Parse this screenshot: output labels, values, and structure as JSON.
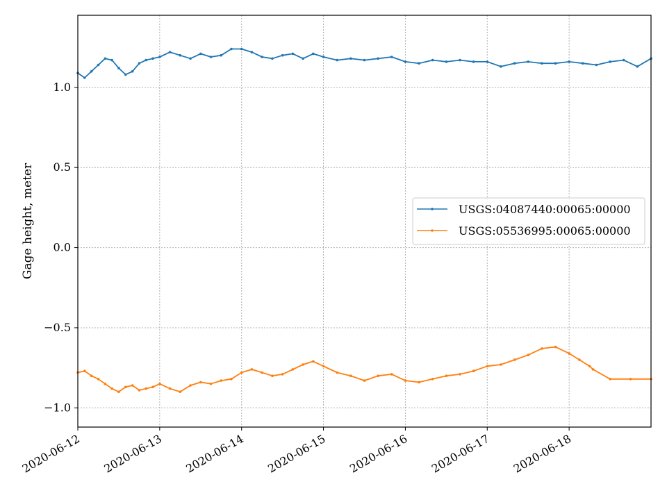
{
  "chart_data": {
    "type": "line",
    "title": "",
    "xlabel": "",
    "ylabel": "Gage height, meter",
    "x_ticks": [
      "2020-06-12",
      "2020-06-13",
      "2020-06-14",
      "2020-06-15",
      "2020-06-16",
      "2020-06-17",
      "2020-06-18"
    ],
    "xlim": [
      "2020-06-12",
      "2020-06-19"
    ],
    "ylim": [
      -1.12,
      1.45
    ],
    "y_ticks": [
      "−1.0",
      "−0.5",
      "0.0",
      "0.5",
      "1.0"
    ],
    "grid": true,
    "legend_position": "center-right",
    "series": [
      {
        "name": "USGS:04087440:00065:00000",
        "color": "#1f77b4",
        "marker": "dot",
        "x": [
          "2020-06-12 00:00",
          "2020-06-12 02:00",
          "2020-06-12 04:00",
          "2020-06-12 06:00",
          "2020-06-12 08:00",
          "2020-06-12 10:00",
          "2020-06-12 12:00",
          "2020-06-12 14:00",
          "2020-06-12 16:00",
          "2020-06-12 18:00",
          "2020-06-12 20:00",
          "2020-06-12 22:00",
          "2020-06-13 00:00",
          "2020-06-13 03:00",
          "2020-06-13 06:00",
          "2020-06-13 09:00",
          "2020-06-13 12:00",
          "2020-06-13 15:00",
          "2020-06-13 18:00",
          "2020-06-13 21:00",
          "2020-06-14 00:00",
          "2020-06-14 03:00",
          "2020-06-14 06:00",
          "2020-06-14 09:00",
          "2020-06-14 12:00",
          "2020-06-14 15:00",
          "2020-06-14 18:00",
          "2020-06-14 21:00",
          "2020-06-15 00:00",
          "2020-06-15 04:00",
          "2020-06-15 08:00",
          "2020-06-15 12:00",
          "2020-06-15 16:00",
          "2020-06-15 20:00",
          "2020-06-16 00:00",
          "2020-06-16 04:00",
          "2020-06-16 08:00",
          "2020-06-16 12:00",
          "2020-06-16 16:00",
          "2020-06-16 20:00",
          "2020-06-17 00:00",
          "2020-06-17 04:00",
          "2020-06-17 08:00",
          "2020-06-17 12:00",
          "2020-06-17 16:00",
          "2020-06-17 20:00",
          "2020-06-18 00:00",
          "2020-06-18 04:00",
          "2020-06-18 08:00",
          "2020-06-18 12:00",
          "2020-06-18 16:00",
          "2020-06-18 20:00",
          "2020-06-19 00:00"
        ],
        "values": [
          1.09,
          1.06,
          1.1,
          1.14,
          1.18,
          1.17,
          1.12,
          1.08,
          1.1,
          1.15,
          1.17,
          1.18,
          1.19,
          1.22,
          1.2,
          1.18,
          1.21,
          1.19,
          1.2,
          1.24,
          1.24,
          1.22,
          1.19,
          1.18,
          1.2,
          1.21,
          1.18,
          1.21,
          1.19,
          1.17,
          1.18,
          1.17,
          1.18,
          1.19,
          1.16,
          1.15,
          1.17,
          1.16,
          1.17,
          1.16,
          1.16,
          1.13,
          1.15,
          1.16,
          1.15,
          1.15,
          1.16,
          1.15,
          1.14,
          1.16,
          1.17,
          1.13,
          1.18
        ]
      },
      {
        "name": "USGS:05536995:00065:00000",
        "color": "#ff7f0e",
        "marker": "dot",
        "x": [
          "2020-06-12 00:00",
          "2020-06-12 02:00",
          "2020-06-12 04:00",
          "2020-06-12 06:00",
          "2020-06-12 08:00",
          "2020-06-12 10:00",
          "2020-06-12 12:00",
          "2020-06-12 14:00",
          "2020-06-12 16:00",
          "2020-06-12 18:00",
          "2020-06-12 20:00",
          "2020-06-12 22:00",
          "2020-06-13 00:00",
          "2020-06-13 03:00",
          "2020-06-13 06:00",
          "2020-06-13 09:00",
          "2020-06-13 12:00",
          "2020-06-13 15:00",
          "2020-06-13 18:00",
          "2020-06-13 21:00",
          "2020-06-14 00:00",
          "2020-06-14 03:00",
          "2020-06-14 06:00",
          "2020-06-14 09:00",
          "2020-06-14 12:00",
          "2020-06-14 15:00",
          "2020-06-14 18:00",
          "2020-06-14 21:00",
          "2020-06-15 00:00",
          "2020-06-15 04:00",
          "2020-06-15 08:00",
          "2020-06-15 12:00",
          "2020-06-15 16:00",
          "2020-06-15 20:00",
          "2020-06-16 00:00",
          "2020-06-16 04:00",
          "2020-06-16 08:00",
          "2020-06-16 12:00",
          "2020-06-16 16:00",
          "2020-06-16 20:00",
          "2020-06-17 00:00",
          "2020-06-17 04:00",
          "2020-06-17 08:00",
          "2020-06-17 12:00",
          "2020-06-17 16:00",
          "2020-06-17 20:00",
          "2020-06-18 00:00",
          "2020-06-18 03:00",
          "2020-06-18 06:00",
          "2020-06-18 07:00",
          "2020-06-18 12:00",
          "2020-06-18 18:00",
          "2020-06-19 00:00"
        ],
        "values": [
          -0.78,
          -0.77,
          -0.8,
          -0.82,
          -0.85,
          -0.88,
          -0.9,
          -0.87,
          -0.86,
          -0.89,
          -0.88,
          -0.87,
          -0.85,
          -0.88,
          -0.9,
          -0.86,
          -0.84,
          -0.85,
          -0.83,
          -0.82,
          -0.78,
          -0.76,
          -0.78,
          -0.8,
          -0.79,
          -0.76,
          -0.73,
          -0.71,
          -0.74,
          -0.78,
          -0.8,
          -0.83,
          -0.8,
          -0.79,
          -0.83,
          -0.84,
          -0.82,
          -0.8,
          -0.79,
          -0.77,
          -0.74,
          -0.73,
          -0.7,
          -0.67,
          -0.63,
          -0.62,
          -0.66,
          -0.7,
          -0.74,
          -0.76,
          -0.82,
          -0.82,
          -0.82
        ]
      }
    ]
  }
}
